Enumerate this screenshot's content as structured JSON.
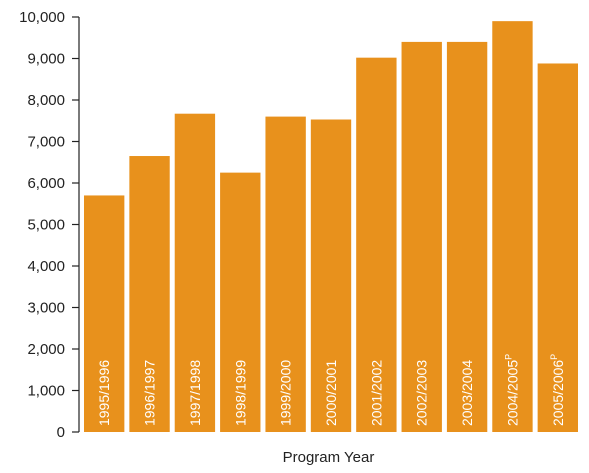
{
  "chart_data": {
    "type": "bar",
    "title": "",
    "xlabel": "Program Year",
    "ylabel": "",
    "ylim": [
      0,
      10000
    ],
    "yticks": [
      0,
      1000,
      2000,
      3000,
      4000,
      5000,
      6000,
      7000,
      8000,
      9000,
      10000
    ],
    "ytick_labels": [
      "0",
      "1,000",
      "2,000",
      "3,000",
      "4,000",
      "5,000",
      "6,000",
      "7,000",
      "8,000",
      "9,000",
      "10,000"
    ],
    "grid": false,
    "bar_color": "#E8911C",
    "categories": [
      {
        "label": "1995/1996",
        "sup": ""
      },
      {
        "label": "1996/1997",
        "sup": ""
      },
      {
        "label": "1997/1998",
        "sup": ""
      },
      {
        "label": "1998/1999",
        "sup": ""
      },
      {
        "label": "1999/2000",
        "sup": ""
      },
      {
        "label": "2000/2001",
        "sup": ""
      },
      {
        "label": "2001/2002",
        "sup": ""
      },
      {
        "label": "2002/2003",
        "sup": ""
      },
      {
        "label": "2003/2004",
        "sup": ""
      },
      {
        "label": "2004/2005",
        "sup": "P"
      },
      {
        "label": "2005/2006",
        "sup": "P"
      }
    ],
    "values": [
      5700,
      6650,
      7670,
      6250,
      7600,
      7530,
      9020,
      9400,
      9400,
      9900,
      8880
    ]
  }
}
